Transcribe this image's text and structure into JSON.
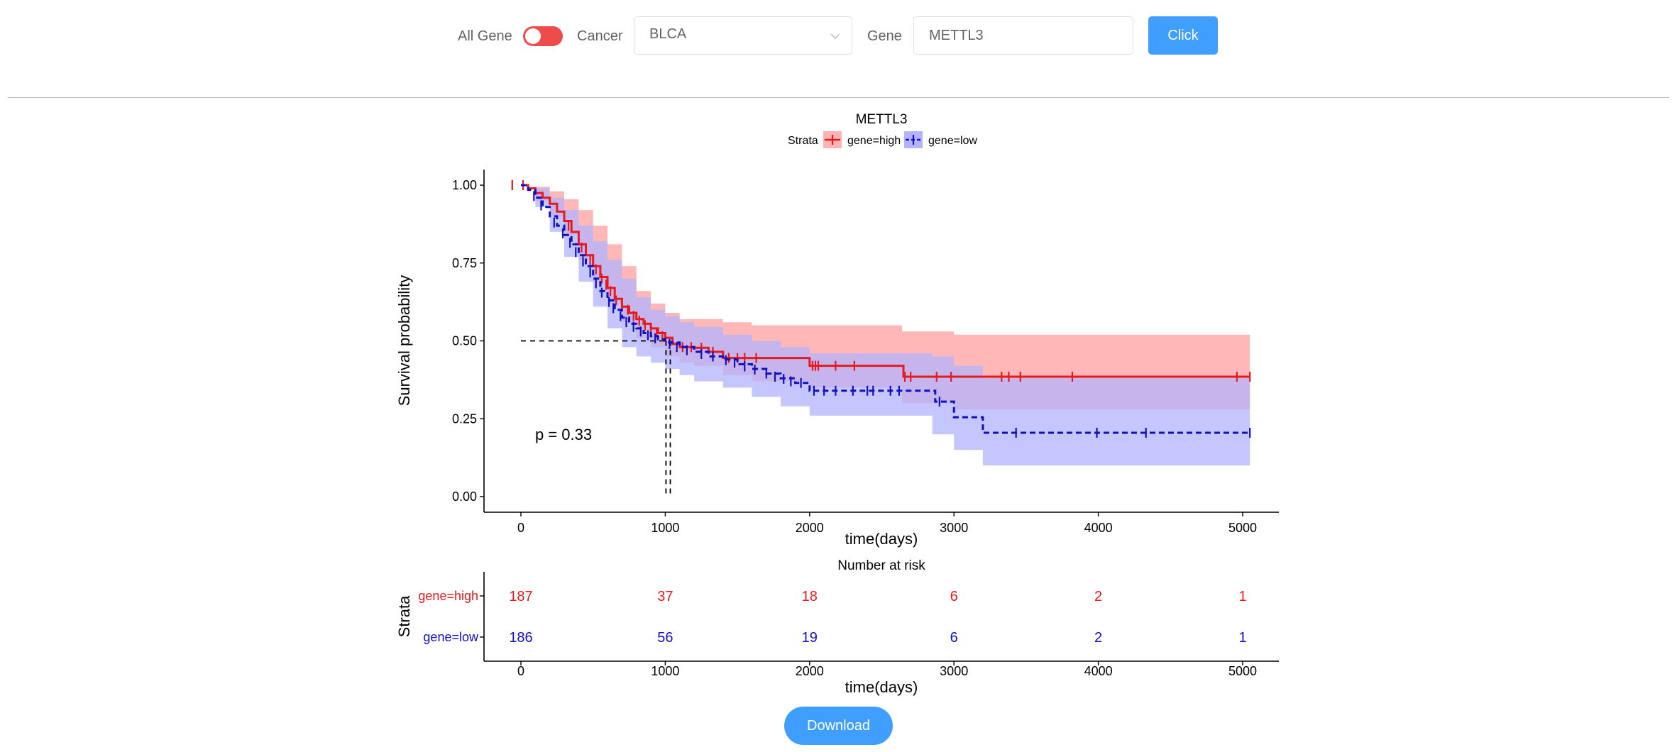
{
  "controls": {
    "all_gene_label": "All Gene",
    "cancer_label": "Cancer",
    "cancer_value": "BLCA",
    "gene_label": "Gene",
    "gene_value": "METTL3",
    "click_label": "Click",
    "download_label": "Download",
    "toggle_color": "#f04b4b",
    "button_color": "#409eff"
  },
  "chart_data": {
    "type": "line",
    "subtype": "kaplan-meier",
    "title": "METTL3",
    "legend_title": "Strata",
    "legend_position": "top",
    "xlabel": "time(days)",
    "ylabel": "Survival probability",
    "xlim": [
      -250,
      5250
    ],
    "ylim": [
      -0.05,
      1.05
    ],
    "x_ticks": [
      "0",
      "1000",
      "2000",
      "3000",
      "4000",
      "5000"
    ],
    "y_ticks": [
      "0.00",
      "0.25",
      "0.50",
      "0.75",
      "1.00"
    ],
    "pvalue_text": "p = 0.33",
    "median_line": {
      "y": 0.5,
      "x": [
        1005,
        1035
      ]
    },
    "series": [
      {
        "name": "gene=high",
        "color": "#e41a1c",
        "band_color": "#ffb3b3",
        "line_style": "solid",
        "steps": [
          [
            0,
            1.0
          ],
          [
            50,
            0.99
          ],
          [
            100,
            0.975
          ],
          [
            150,
            0.96
          ],
          [
            200,
            0.94
          ],
          [
            250,
            0.915
          ],
          [
            300,
            0.885
          ],
          [
            350,
            0.85
          ],
          [
            400,
            0.81
          ],
          [
            450,
            0.775
          ],
          [
            500,
            0.74
          ],
          [
            550,
            0.705
          ],
          [
            600,
            0.67
          ],
          [
            650,
            0.635
          ],
          [
            700,
            0.61
          ],
          [
            750,
            0.59
          ],
          [
            800,
            0.57
          ],
          [
            850,
            0.555
          ],
          [
            900,
            0.54
          ],
          [
            950,
            0.525
          ],
          [
            1000,
            0.51
          ],
          [
            1050,
            0.49
          ],
          [
            1100,
            0.48
          ],
          [
            1200,
            0.478
          ],
          [
            1300,
            0.465
          ],
          [
            1400,
            0.445
          ],
          [
            1500,
            0.445
          ],
          [
            1950,
            0.445
          ],
          [
            2000,
            0.42
          ],
          [
            2500,
            0.42
          ],
          [
            2640,
            0.42
          ],
          [
            2650,
            0.385
          ],
          [
            5050,
            0.385
          ]
        ],
        "upper": [
          [
            0,
            1.0
          ],
          [
            100,
            0.995
          ],
          [
            200,
            0.98
          ],
          [
            300,
            0.955
          ],
          [
            400,
            0.92
          ],
          [
            500,
            0.87
          ],
          [
            600,
            0.81
          ],
          [
            700,
            0.74
          ],
          [
            800,
            0.66
          ],
          [
            900,
            0.62
          ],
          [
            1000,
            0.59
          ],
          [
            1100,
            0.57
          ],
          [
            1200,
            0.57
          ],
          [
            1400,
            0.56
          ],
          [
            1600,
            0.55
          ],
          [
            2000,
            0.55
          ],
          [
            2640,
            0.53
          ],
          [
            3000,
            0.52
          ],
          [
            5050,
            0.52
          ]
        ],
        "lower": [
          [
            0,
            1.0
          ],
          [
            100,
            0.95
          ],
          [
            200,
            0.9
          ],
          [
            300,
            0.84
          ],
          [
            400,
            0.76
          ],
          [
            500,
            0.69
          ],
          [
            600,
            0.62
          ],
          [
            700,
            0.56
          ],
          [
            800,
            0.51
          ],
          [
            900,
            0.48
          ],
          [
            1000,
            0.45
          ],
          [
            1100,
            0.43
          ],
          [
            1200,
            0.42
          ],
          [
            1400,
            0.39
          ],
          [
            1600,
            0.37
          ],
          [
            2000,
            0.35
          ],
          [
            2640,
            0.3
          ],
          [
            3000,
            0.28
          ],
          [
            5050,
            0.28
          ]
        ],
        "censors": [
          [
            -60,
            1.0
          ],
          [
            15,
            1.0
          ],
          [
            330,
            0.87
          ],
          [
            420,
            0.8
          ],
          [
            480,
            0.76
          ],
          [
            520,
            0.73
          ],
          [
            560,
            0.7
          ],
          [
            590,
            0.68
          ],
          [
            620,
            0.66
          ],
          [
            660,
            0.63
          ],
          [
            700,
            0.61
          ],
          [
            740,
            0.6
          ],
          [
            780,
            0.58
          ],
          [
            820,
            0.565
          ],
          [
            860,
            0.55
          ],
          [
            900,
            0.54
          ],
          [
            940,
            0.527
          ],
          [
            980,
            0.515
          ],
          [
            1120,
            0.48
          ],
          [
            1180,
            0.48
          ],
          [
            1250,
            0.478
          ],
          [
            1330,
            0.465
          ],
          [
            1440,
            0.445
          ],
          [
            1500,
            0.445
          ],
          [
            1550,
            0.445
          ],
          [
            1630,
            0.445
          ],
          [
            2020,
            0.42
          ],
          [
            2040,
            0.42
          ],
          [
            2060,
            0.42
          ],
          [
            2180,
            0.42
          ],
          [
            2310,
            0.42
          ],
          [
            2660,
            0.385
          ],
          [
            2700,
            0.385
          ],
          [
            2880,
            0.385
          ],
          [
            2980,
            0.385
          ],
          [
            3330,
            0.385
          ],
          [
            3380,
            0.385
          ],
          [
            3460,
            0.385
          ],
          [
            3820,
            0.385
          ],
          [
            4960,
            0.385
          ],
          [
            5050,
            0.385
          ]
        ]
      },
      {
        "name": "gene=low",
        "color": "#1010c0",
        "band_color": "#b3b3ff",
        "line_style": "dashed",
        "steps": [
          [
            0,
            1.0
          ],
          [
            50,
            0.985
          ],
          [
            100,
            0.96
          ],
          [
            150,
            0.93
          ],
          [
            200,
            0.9
          ],
          [
            250,
            0.87
          ],
          [
            300,
            0.84
          ],
          [
            350,
            0.81
          ],
          [
            400,
            0.775
          ],
          [
            450,
            0.74
          ],
          [
            500,
            0.7
          ],
          [
            550,
            0.66
          ],
          [
            600,
            0.63
          ],
          [
            650,
            0.6
          ],
          [
            700,
            0.575
          ],
          [
            750,
            0.555
          ],
          [
            800,
            0.54
          ],
          [
            850,
            0.525
          ],
          [
            900,
            0.515
          ],
          [
            950,
            0.505
          ],
          [
            1000,
            0.495
          ],
          [
            1100,
            0.48
          ],
          [
            1200,
            0.465
          ],
          [
            1300,
            0.45
          ],
          [
            1400,
            0.44
          ],
          [
            1500,
            0.425
          ],
          [
            1600,
            0.41
          ],
          [
            1700,
            0.395
          ],
          [
            1800,
            0.38
          ],
          [
            1900,
            0.365
          ],
          [
            1980,
            0.365
          ],
          [
            2000,
            0.34
          ],
          [
            2850,
            0.34
          ],
          [
            2870,
            0.305
          ],
          [
            2950,
            0.305
          ],
          [
            3000,
            0.255
          ],
          [
            3180,
            0.255
          ],
          [
            3200,
            0.205
          ],
          [
            5050,
            0.205
          ]
        ],
        "upper": [
          [
            0,
            1.0
          ],
          [
            100,
            0.99
          ],
          [
            200,
            0.96
          ],
          [
            300,
            0.92
          ],
          [
            400,
            0.87
          ],
          [
            500,
            0.82
          ],
          [
            600,
            0.76
          ],
          [
            700,
            0.7
          ],
          [
            800,
            0.64
          ],
          [
            900,
            0.6
          ],
          [
            1000,
            0.58
          ],
          [
            1100,
            0.56
          ],
          [
            1200,
            0.545
          ],
          [
            1400,
            0.52
          ],
          [
            1600,
            0.5
          ],
          [
            1800,
            0.48
          ],
          [
            2000,
            0.46
          ],
          [
            2850,
            0.45
          ],
          [
            3000,
            0.42
          ],
          [
            3200,
            0.38
          ],
          [
            5050,
            0.38
          ]
        ],
        "lower": [
          [
            0,
            1.0
          ],
          [
            100,
            0.93
          ],
          [
            200,
            0.85
          ],
          [
            300,
            0.77
          ],
          [
            400,
            0.69
          ],
          [
            500,
            0.61
          ],
          [
            600,
            0.54
          ],
          [
            700,
            0.48
          ],
          [
            800,
            0.45
          ],
          [
            900,
            0.43
          ],
          [
            1000,
            0.41
          ],
          [
            1100,
            0.39
          ],
          [
            1200,
            0.37
          ],
          [
            1400,
            0.35
          ],
          [
            1600,
            0.32
          ],
          [
            1800,
            0.29
          ],
          [
            2000,
            0.26
          ],
          [
            2850,
            0.2
          ],
          [
            3000,
            0.15
          ],
          [
            3200,
            0.1
          ],
          [
            5050,
            0.1
          ]
        ],
        "censors": [
          [
            90,
            0.965
          ],
          [
            140,
            0.935
          ],
          [
            230,
            0.88
          ],
          [
            290,
            0.845
          ],
          [
            340,
            0.815
          ],
          [
            380,
            0.785
          ],
          [
            430,
            0.755
          ],
          [
            480,
            0.72
          ],
          [
            520,
            0.685
          ],
          [
            560,
            0.655
          ],
          [
            610,
            0.625
          ],
          [
            640,
            0.605
          ],
          [
            690,
            0.58
          ],
          [
            730,
            0.56
          ],
          [
            780,
            0.545
          ],
          [
            830,
            0.53
          ],
          [
            880,
            0.518
          ],
          [
            930,
            0.508
          ],
          [
            1030,
            0.49
          ],
          [
            1080,
            0.48
          ],
          [
            1150,
            0.47
          ],
          [
            1250,
            0.458
          ],
          [
            1330,
            0.45
          ],
          [
            1420,
            0.438
          ],
          [
            1480,
            0.43
          ],
          [
            1550,
            0.418
          ],
          [
            1620,
            0.408
          ],
          [
            1700,
            0.395
          ],
          [
            1760,
            0.385
          ],
          [
            1820,
            0.378
          ],
          [
            1870,
            0.37
          ],
          [
            1940,
            0.365
          ],
          [
            2030,
            0.34
          ],
          [
            2100,
            0.34
          ],
          [
            2180,
            0.34
          ],
          [
            2300,
            0.34
          ],
          [
            2400,
            0.34
          ],
          [
            2440,
            0.34
          ],
          [
            2560,
            0.34
          ],
          [
            2620,
            0.34
          ],
          [
            2900,
            0.305
          ],
          [
            3430,
            0.205
          ],
          [
            3990,
            0.205
          ],
          [
            4330,
            0.205
          ],
          [
            5050,
            0.205
          ]
        ]
      }
    ],
    "risk_table": {
      "title": "Number at risk",
      "ylabel": "Strata",
      "xlabel": "time(days)",
      "times": [
        0,
        1000,
        2000,
        3000,
        4000,
        5000
      ],
      "rows": [
        {
          "name": "gene=high",
          "color": "#e41a1c",
          "counts": [
            "187",
            "37",
            "18",
            "6",
            "2",
            "1"
          ]
        },
        {
          "name": "gene=low",
          "color": "#1010c0",
          "counts": [
            "186",
            "56",
            "19",
            "6",
            "2",
            "1"
          ]
        }
      ]
    }
  }
}
